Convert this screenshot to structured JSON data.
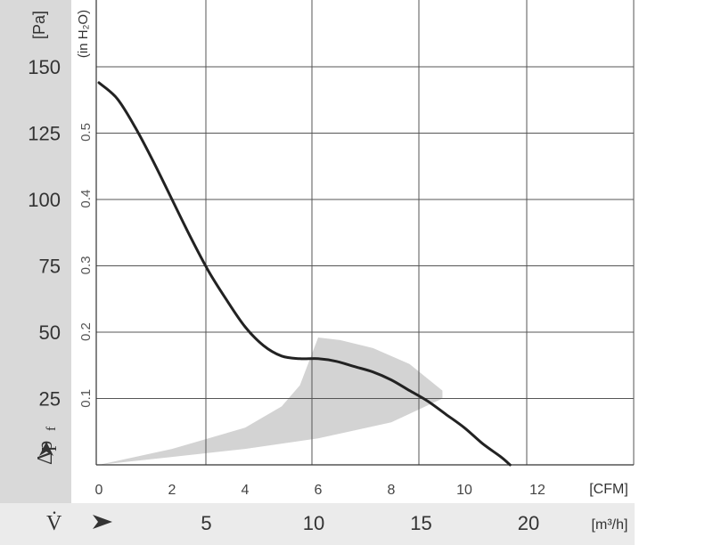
{
  "chart_data": {
    "type": "line",
    "colors": {
      "band": "#ebebeb",
      "curve": "#222222",
      "grid": "#555555",
      "shaded_axis": "#d9d9d9",
      "region": "#d3d3d3"
    },
    "grid": true,
    "x_primary": {
      "unit_label": "[CFM]",
      "ticks": [
        0,
        2,
        4,
        6,
        8,
        10,
        12
      ],
      "tick_labels": [
        "0",
        "2",
        "4",
        "6",
        "8",
        "10",
        "12"
      ],
      "range": [
        0,
        14.5
      ]
    },
    "x_secondary": {
      "symbol": "V̇",
      "unit_label": "[m³/h]",
      "ticks": [
        5,
        10,
        15,
        20
      ],
      "tick_labels": [
        "5",
        "10",
        "15",
        "20"
      ]
    },
    "y_primary": {
      "unit_label": "[Pa]",
      "symbol": "Δp",
      "symbol_subscript": "f",
      "ticks": [
        25,
        50,
        75,
        100,
        125,
        150
      ],
      "tick_labels": [
        "25",
        "50",
        "75",
        "100",
        "125",
        "150"
      ],
      "range": [
        0,
        175
      ]
    },
    "y_secondary": {
      "unit_label": "(in H₂O)",
      "ticks": [
        0.1,
        0.2,
        0.3,
        0.4,
        0.5
      ],
      "tick_labels": [
        "0.1",
        "0.2",
        "0.3",
        "0.4",
        "0.5"
      ]
    },
    "series": [
      {
        "x": [
          0,
          0.5,
          1,
          1.5,
          2,
          2.5,
          3,
          3.5,
          4,
          4.5,
          5,
          5.5,
          6,
          6.5,
          7,
          7.5,
          8,
          8.5,
          9,
          9.5,
          10,
          10.5,
          11,
          11.25
        ],
        "y": [
          144,
          138,
          127,
          114,
          100,
          86,
          73,
          62,
          52,
          45,
          41,
          40,
          40,
          39,
          37,
          35,
          32,
          28,
          24,
          19,
          14,
          8,
          3,
          0
        ]
      }
    ],
    "shaded_region": {
      "upper": {
        "x": [
          0,
          2,
          4,
          5,
          5.5,
          6,
          6.6,
          7.5,
          8.5,
          9.4
        ],
        "y": [
          0,
          6,
          14,
          22,
          30,
          48,
          47,
          44,
          38,
          28
        ]
      },
      "lower": {
        "x": [
          9.4,
          8,
          6,
          4,
          2,
          0
        ],
        "y": [
          25,
          16,
          10,
          6,
          3,
          0
        ]
      }
    }
  }
}
